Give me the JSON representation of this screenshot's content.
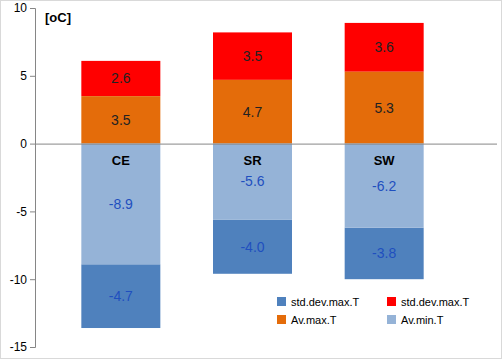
{
  "chart_data": {
    "type": "bar",
    "stacked": true,
    "data_labels": true,
    "ylabel": "[oC]",
    "categories": [
      "CE",
      "SR",
      "SW"
    ],
    "series": [
      {
        "name": "std.dev.max.T",
        "color": "#4f81bd",
        "values": [
          -4.7,
          -4.0,
          -3.8
        ],
        "value_labels": [
          "-4.7",
          "-4.0",
          "-3.8"
        ]
      },
      {
        "name": "std.dev.max.T",
        "color": "#ff0000",
        "values": [
          2.6,
          3.5,
          3.6
        ]
      },
      {
        "name": "Av.max.T",
        "color": "#e46c0a",
        "values": [
          3.5,
          4.7,
          5.3
        ]
      },
      {
        "name": "Av.min.T",
        "color": "#95b3d7",
        "values": [
          -8.9,
          -5.6,
          -6.2
        ]
      }
    ],
    "ylim": [
      -15,
      10
    ],
    "yticks": [
      -15,
      -10,
      -5,
      0,
      5,
      10
    ],
    "legend": "lower right"
  }
}
